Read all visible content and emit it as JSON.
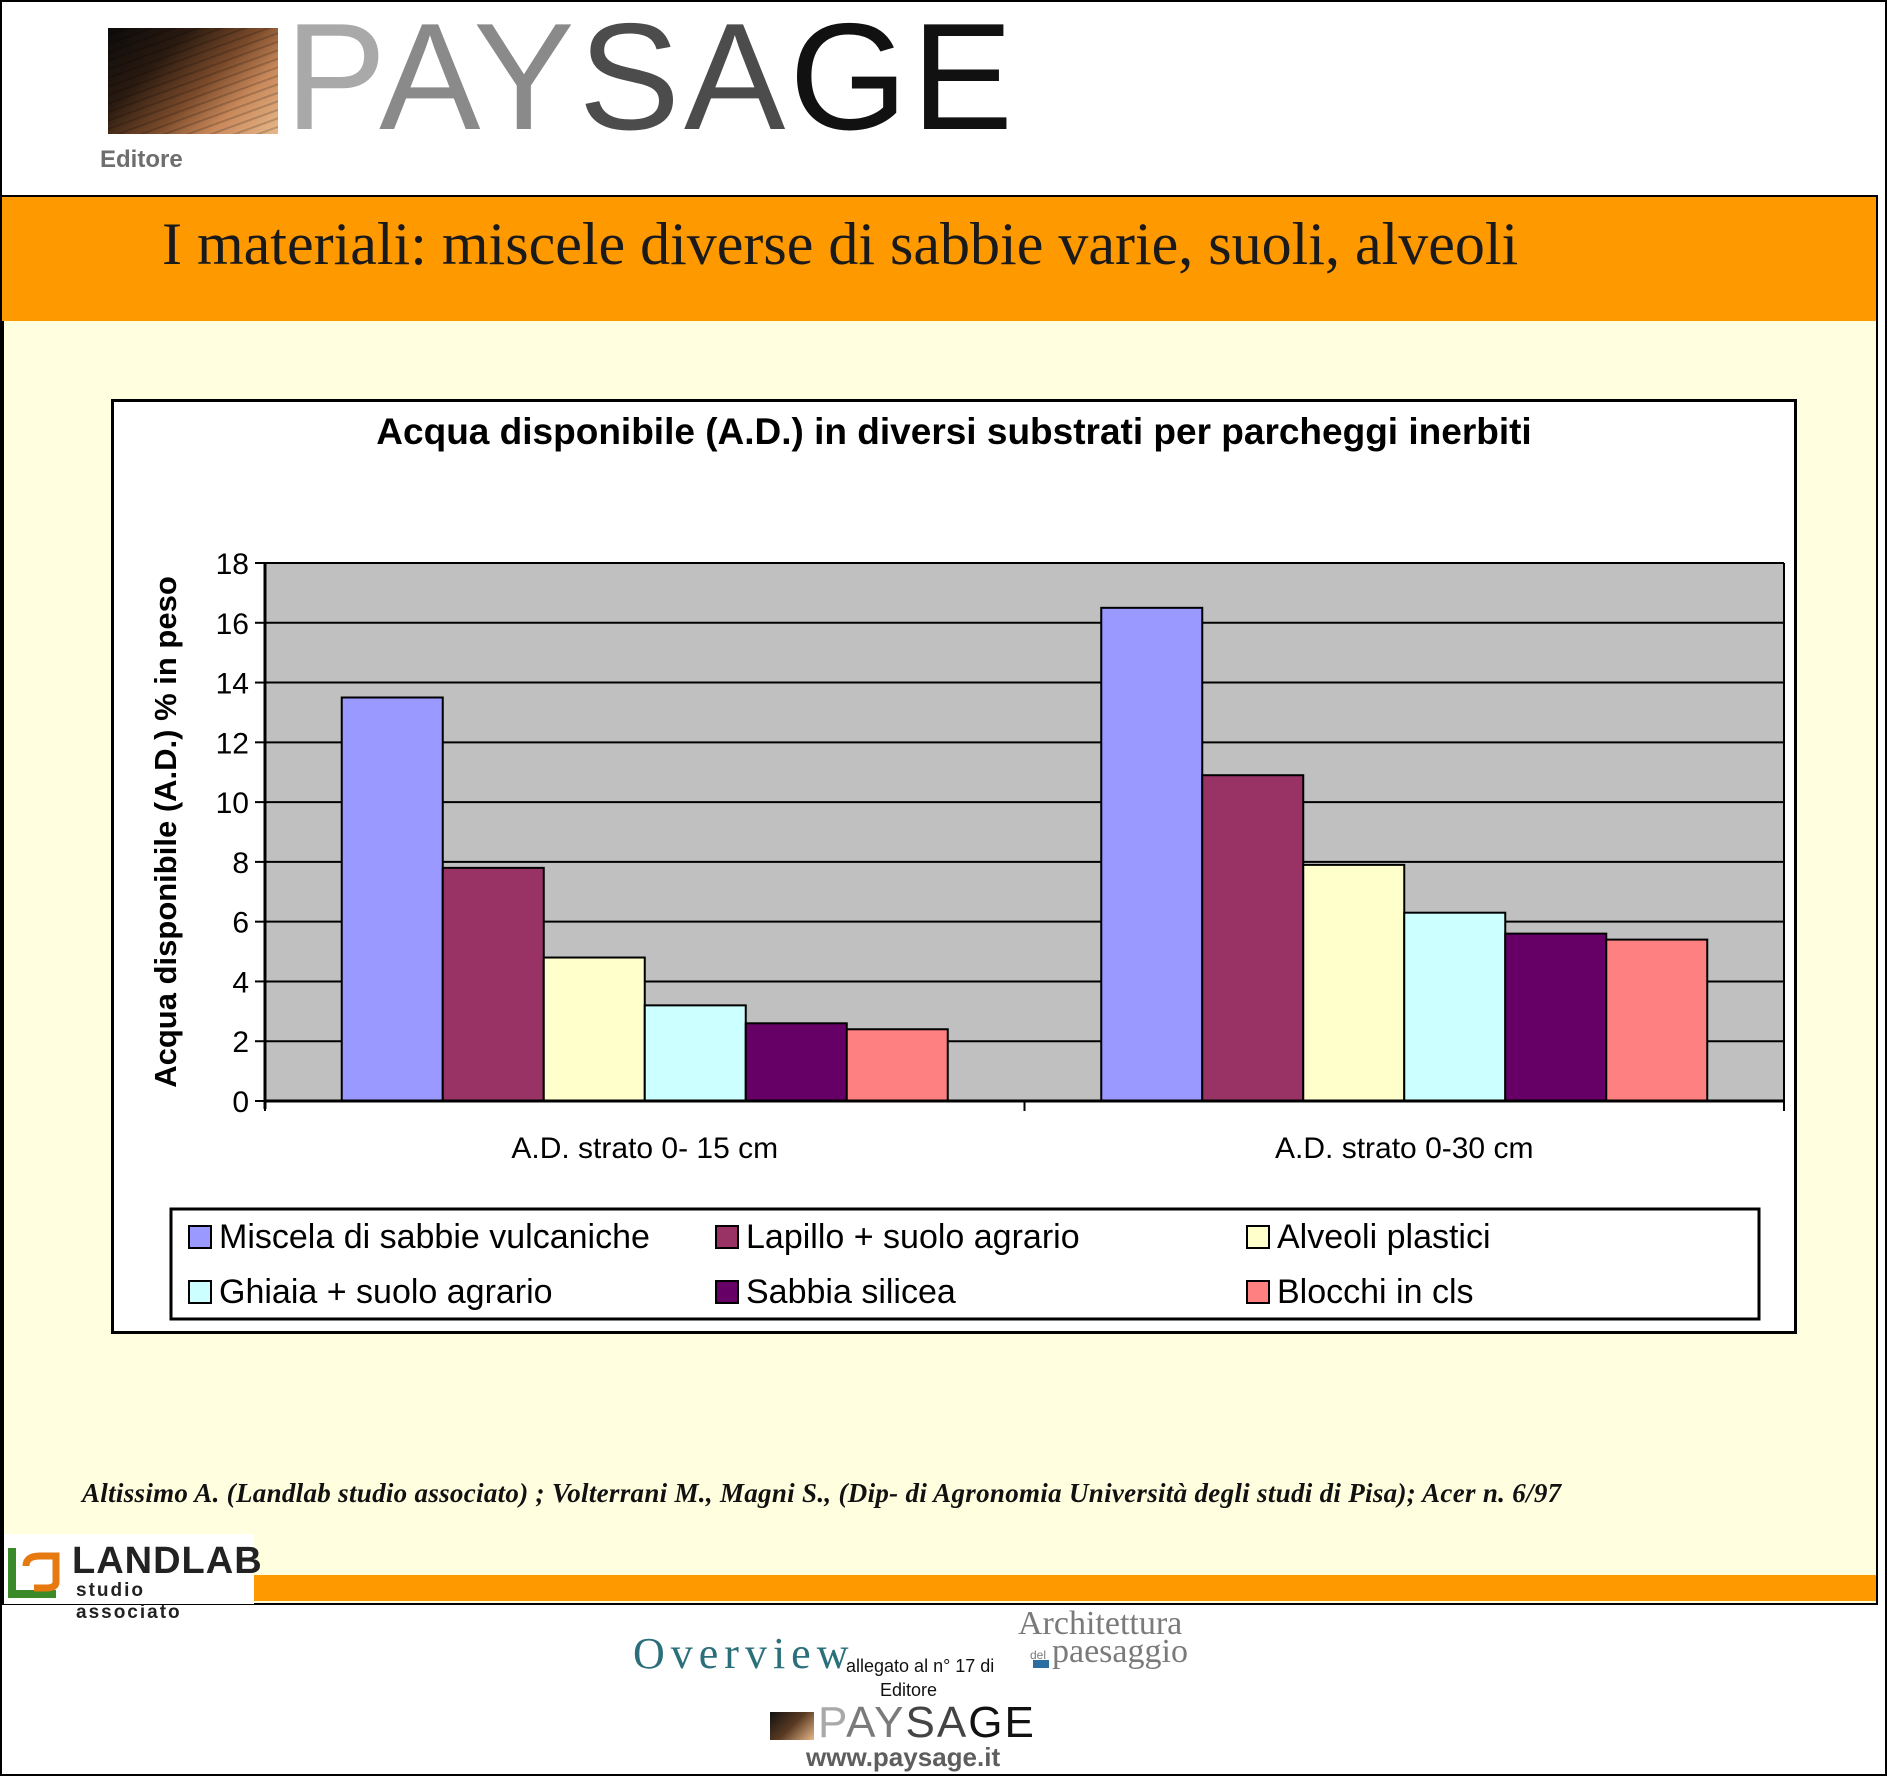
{
  "header": {
    "brand_parts": [
      "P",
      "AY",
      "SA",
      "GE"
    ],
    "editore": "Editore"
  },
  "slide": {
    "title": "I materiali: miscele diverse di sabbie varie, suoli, alveoli",
    "citation": "Altissimo A. (Landlab studio associato) ; Volterrani M., Magni S., (Dip- di Agronomia Università degli studi di Pisa); Acer n. 6/97"
  },
  "chart_data": {
    "type": "bar",
    "title": "Acqua disponibile (A.D.) in diversi substrati per parcheggi inerbiti",
    "ylabel": "Acqua disponibile (A.D.) % in peso",
    "xlabel": "",
    "ylim": [
      0,
      18
    ],
    "yticks": [
      0,
      2,
      4,
      6,
      8,
      10,
      12,
      14,
      16,
      18
    ],
    "grid": true,
    "legend_position": "bottom",
    "categories": [
      "A.D. strato 0- 15 cm",
      "A.D. strato 0-30 cm"
    ],
    "series": [
      {
        "name": "Miscela di sabbie vulcaniche",
        "color": "#9999ff",
        "values": [
          13.5,
          16.5
        ]
      },
      {
        "name": "Lapillo  + suolo agrario",
        "color": "#993366",
        "values": [
          7.8,
          10.9
        ]
      },
      {
        "name": "Alveoli plastici",
        "color": "#ffffcc",
        "values": [
          4.8,
          7.9
        ]
      },
      {
        "name": "Ghiaia + suolo agrario",
        "color": "#ccffff",
        "values": [
          3.2,
          6.3
        ]
      },
      {
        "name": "Sabbia silicea",
        "color": "#660066",
        "values": [
          2.6,
          5.6
        ]
      },
      {
        "name": "Blocchi in cls",
        "color": "#ff8080",
        "values": [
          2.4,
          5.4
        ]
      }
    ],
    "plot_background": "#c0c0c0"
  },
  "footer": {
    "landlab_name": "LANDLAB",
    "landlab_sub": "studio associato",
    "overview": "Overview",
    "allegato": "allegato al n° 17 di",
    "editore": "Editore",
    "archi_line1": "Architettura",
    "archi_small": "del",
    "archi_line2": "paesaggio",
    "brand_parts": [
      "P",
      "AY",
      "SA",
      "GE"
    ],
    "url": "www.paysage.it"
  },
  "colors": {
    "orange": "#ff9900",
    "panel": "#ffffe0"
  }
}
